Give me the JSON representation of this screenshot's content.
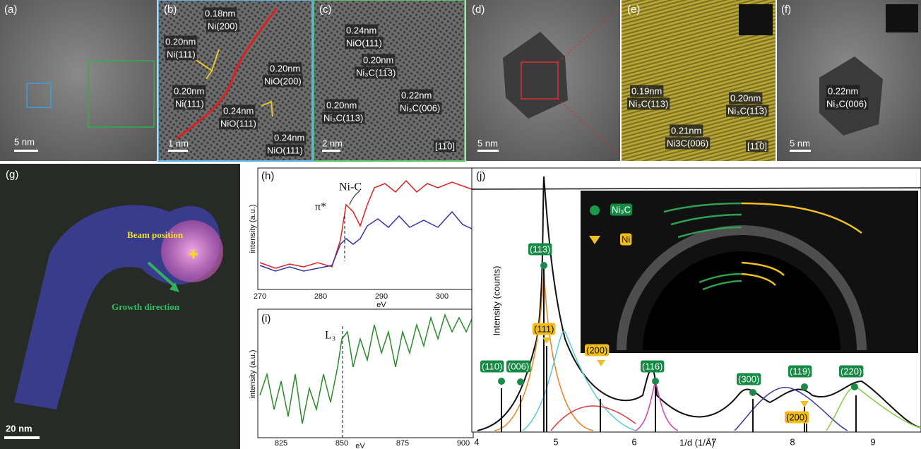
{
  "panels": {
    "a": {
      "label": "(a)",
      "scale": "5 nm"
    },
    "b": {
      "label": "(b)",
      "scale": "1 nm",
      "annotations": [
        {
          "spacing": "0.18nm",
          "plane": "Ni(200)"
        },
        {
          "spacing": "0.20nm",
          "plane": "Ni(111)"
        },
        {
          "spacing": "0.20nm",
          "plane": "NiO(200)"
        },
        {
          "spacing": "0.20nm",
          "plane": "Ni(111)"
        },
        {
          "spacing": "0.24nm",
          "plane": "NiO(111)"
        },
        {
          "spacing": "0.24nm",
          "plane": "NiO(111)"
        }
      ]
    },
    "c": {
      "label": "(c)",
      "scale": "2 nm",
      "zone": "[11̅0]",
      "annotations": [
        {
          "spacing": "0.24nm",
          "plane": "NiO(111)"
        },
        {
          "spacing": "0.20nm",
          "plane": "Ni₃C(11̅3)"
        },
        {
          "spacing": "0.20nm",
          "plane": "Ni₃C(113)"
        },
        {
          "spacing": "0.22nm",
          "plane": "Ni₃C(006)"
        }
      ]
    },
    "d": {
      "label": "(d)",
      "scale": "5 nm"
    },
    "e": {
      "label": "(e)",
      "zone": "[11̅0]",
      "annotations": [
        {
          "spacing": "0.19nm",
          "plane": "Ni₃C(113)"
        },
        {
          "spacing": "0.20nm",
          "plane": "Ni₃C(11̅3)"
        },
        {
          "spacing": "0.21nm",
          "plane": "Ni3C(006)"
        }
      ]
    },
    "f": {
      "label": "(f)",
      "scale": "5 nm",
      "annotations": [
        {
          "spacing": "0.22nm",
          "plane": "Ni₃C(006)"
        }
      ]
    },
    "g": {
      "label": "(g)",
      "beam": "Beam position",
      "growth": "Growth direction",
      "scale": "20 nm"
    },
    "h": {
      "label": "(h)",
      "peak": "Ni-C",
      "edge": "π*",
      "ylabel": "intensity (a.u.)",
      "xlabel": "eV",
      "xticks": [
        "270",
        "280",
        "290",
        "300"
      ]
    },
    "i": {
      "label": "(i)",
      "edge": "L₃",
      "ylabel": "intensity (a.u.)",
      "xlabel": "eV",
      "xticks": [
        "825",
        "850",
        "875",
        "900"
      ]
    },
    "j": {
      "label": "(j)",
      "ylabel": "Intensity (counts)",
      "xlabel": "1/d (1/Å)",
      "xticks": [
        "4",
        "5",
        "6",
        "7",
        "8",
        "9"
      ],
      "legend": [
        "Ni₃C",
        "Ni"
      ],
      "peaks": [
        "(113)",
        "(111)",
        "(110)",
        "(006)",
        "(200)",
        "(116)",
        "(300)",
        "(119)",
        "(200)",
        "(220)"
      ]
    }
  }
}
